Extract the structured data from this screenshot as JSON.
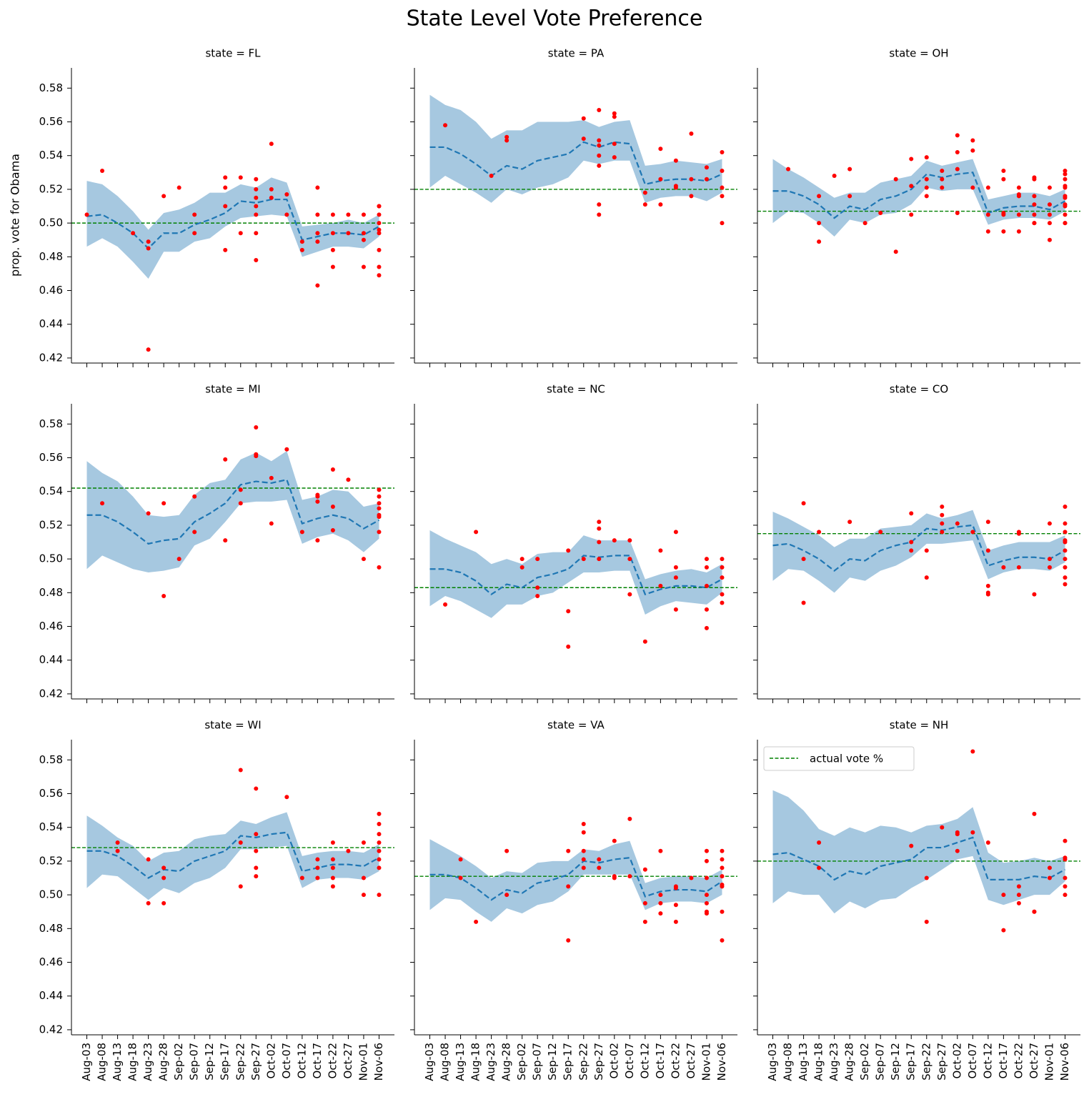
{
  "title": "State Level Vote Preference",
  "ylabel": "prop. vote for Obama",
  "categories": [
    "Aug-03",
    "Aug-08",
    "Aug-13",
    "Aug-18",
    "Aug-23",
    "Aug-28",
    "Sep-02",
    "Sep-07",
    "Sep-12",
    "Sep-17",
    "Sep-22",
    "Sep-27",
    "Oct-02",
    "Oct-07",
    "Oct-12",
    "Oct-17",
    "Oct-22",
    "Oct-27",
    "Nov-01",
    "Nov-06"
  ],
  "ylim": [
    0.417,
    0.592
  ],
  "yticks": [
    0.42,
    0.44,
    0.46,
    0.48,
    {
      "value": 0.5,
      "label": "0.50"
    },
    0.52,
    0.54,
    0.56,
    0.58
  ],
  "colors": {
    "band": "#a6c8e0",
    "line": "#1f77b4",
    "point": "#ff0000",
    "actual": "#008000"
  },
  "legend": {
    "label": "actual vote %",
    "loc": "upper left"
  },
  "chart_data": [
    {
      "type": "line",
      "title": "state = FL",
      "actual": 0.5,
      "mean": [
        0.504,
        0.505,
        0.5,
        0.494,
        0.485,
        0.494,
        0.494,
        0.499,
        0.502,
        0.506,
        0.513,
        0.512,
        0.514,
        0.514,
        0.49,
        0.492,
        0.494,
        0.494,
        0.493,
        0.498
      ],
      "upper": [
        0.525,
        0.523,
        0.516,
        0.507,
        0.496,
        0.506,
        0.508,
        0.512,
        0.518,
        0.518,
        0.523,
        0.521,
        0.527,
        0.524,
        0.498,
        0.499,
        0.5,
        0.502,
        0.5,
        0.505
      ],
      "lower": [
        0.486,
        0.491,
        0.486,
        0.477,
        0.467,
        0.483,
        0.483,
        0.489,
        0.491,
        0.498,
        0.503,
        0.504,
        0.505,
        0.504,
        0.48,
        0.483,
        0.486,
        0.486,
        0.485,
        0.492
      ],
      "polls": [
        [
          0.505
        ],
        [
          0.531
        ],
        [],
        [
          0.494
        ],
        [
          0.489,
          0.485,
          0.425
        ],
        [
          0.516
        ],
        [
          0.521
        ],
        [
          0.505,
          0.494
        ],
        [],
        [
          0.527,
          0.521,
          0.51,
          0.484
        ],
        [
          0.527,
          0.494
        ],
        [
          0.526,
          0.52,
          0.515,
          0.51,
          0.505,
          0.494,
          0.478
        ],
        [
          0.547,
          0.52,
          0.515
        ],
        [
          0.517,
          0.505
        ],
        [
          0.489,
          0.484
        ],
        [
          0.521,
          0.505,
          0.494,
          0.489,
          0.463
        ],
        [
          0.505,
          0.494,
          0.484,
          0.474
        ],
        [
          0.505,
          0.494
        ],
        [
          0.505,
          0.494,
          0.49,
          0.474
        ],
        [
          0.51,
          0.51,
          0.505,
          0.5,
          0.496,
          0.494,
          0.484,
          0.474,
          0.469
        ]
      ]
    },
    {
      "type": "line",
      "title": "state = PA",
      "actual": 0.52,
      "mean": [
        0.545,
        0.545,
        0.541,
        0.535,
        0.528,
        0.534,
        0.532,
        0.537,
        0.539,
        0.541,
        0.548,
        0.545,
        0.548,
        0.547,
        0.523,
        0.525,
        0.526,
        0.526,
        0.525,
        0.529
      ],
      "upper": [
        0.576,
        0.57,
        0.567,
        0.56,
        0.55,
        0.555,
        0.555,
        0.56,
        0.56,
        0.56,
        0.561,
        0.557,
        0.56,
        0.561,
        0.534,
        0.535,
        0.537,
        0.536,
        0.535,
        0.538
      ],
      "lower": [
        0.521,
        0.528,
        0.523,
        0.518,
        0.512,
        0.52,
        0.517,
        0.521,
        0.523,
        0.527,
        0.537,
        0.535,
        0.537,
        0.537,
        0.512,
        0.515,
        0.516,
        0.516,
        0.513,
        0.518
      ],
      "polls": [
        [],
        [
          0.558
        ],
        [],
        [],
        [
          0.528
        ],
        [
          0.551,
          0.549
        ],
        [],
        [],
        [],
        [],
        [
          0.562,
          0.55
        ],
        [
          0.567,
          0.549,
          0.546,
          0.54,
          0.534,
          0.511,
          0.505
        ],
        [
          0.565,
          0.563,
          0.547,
          0.539
        ],
        [],
        [
          0.518,
          0.511
        ],
        [
          0.544,
          0.526,
          0.511
        ],
        [
          0.537,
          0.522,
          0.521
        ],
        [
          0.553,
          0.526,
          0.516
        ],
        [
          0.533,
          0.526
        ],
        [
          0.542,
          0.531,
          0.521,
          0.516,
          0.5
        ]
      ]
    },
    {
      "type": "line",
      "title": "state = OH",
      "actual": 0.507,
      "mean": [
        0.519,
        0.519,
        0.516,
        0.511,
        0.503,
        0.51,
        0.508,
        0.514,
        0.516,
        0.52,
        0.529,
        0.527,
        0.529,
        0.53,
        0.506,
        0.509,
        0.51,
        0.51,
        0.508,
        0.513
      ],
      "upper": [
        0.538,
        0.532,
        0.527,
        0.521,
        0.515,
        0.518,
        0.518,
        0.524,
        0.526,
        0.528,
        0.537,
        0.534,
        0.536,
        0.538,
        0.514,
        0.516,
        0.518,
        0.518,
        0.516,
        0.52
      ],
      "lower": [
        0.5,
        0.507,
        0.506,
        0.5,
        0.492,
        0.502,
        0.5,
        0.505,
        0.506,
        0.511,
        0.521,
        0.519,
        0.52,
        0.52,
        0.499,
        0.502,
        0.503,
        0.503,
        0.502,
        0.507
      ],
      "polls": [
        [],
        [
          0.532
        ],
        [],
        [
          0.516,
          0.5,
          0.489
        ],
        [
          0.528
        ],
        [
          0.532,
          0.516
        ],
        [
          0.5
        ],
        [
          0.506
        ],
        [
          0.526,
          0.483
        ],
        [
          0.538,
          0.522,
          0.505
        ],
        [
          0.539,
          0.526,
          0.521,
          0.516
        ],
        [
          0.531,
          0.526,
          0.521
        ],
        [
          0.552,
          0.542,
          0.532,
          0.506
        ],
        [
          0.549,
          0.543,
          0.521
        ],
        [
          0.521,
          0.505,
          0.495
        ],
        [
          0.531,
          0.526,
          0.506,
          0.505,
          0.495
        ],
        [
          0.521,
          0.516,
          0.517,
          0.505,
          0.495
        ],
        [
          0.527,
          0.526,
          0.516,
          0.511,
          0.505,
          0.5,
          0.5
        ],
        [
          0.521,
          0.511,
          0.505,
          0.5,
          0.49
        ],
        [
          0.531,
          0.529,
          0.526,
          0.522,
          0.521,
          0.516,
          0.515,
          0.511,
          0.51,
          0.505,
          0.5,
          0.5
        ]
      ]
    },
    {
      "type": "line",
      "title": "state = MI",
      "actual": 0.542,
      "mean": [
        0.526,
        0.526,
        0.522,
        0.516,
        0.509,
        0.511,
        0.512,
        0.522,
        0.527,
        0.533,
        0.544,
        0.546,
        0.545,
        0.547,
        0.521,
        0.524,
        0.526,
        0.524,
        0.518,
        0.523
      ],
      "upper": [
        0.558,
        0.551,
        0.546,
        0.537,
        0.526,
        0.525,
        0.526,
        0.538,
        0.545,
        0.547,
        0.559,
        0.563,
        0.558,
        0.564,
        0.535,
        0.537,
        0.541,
        0.54,
        0.531,
        0.533
      ],
      "lower": [
        0.494,
        0.502,
        0.498,
        0.494,
        0.492,
        0.493,
        0.495,
        0.508,
        0.512,
        0.522,
        0.533,
        0.534,
        0.534,
        0.535,
        0.509,
        0.513,
        0.515,
        0.511,
        0.504,
        0.512
      ],
      "polls": [
        [],
        [
          0.533
        ],
        [],
        [],
        [
          0.527
        ],
        [
          0.533,
          0.478
        ],
        [
          0.5
        ],
        [
          0.537,
          0.516
        ],
        [],
        [
          0.559,
          0.511
        ],
        [
          0.541,
          0.533
        ],
        [
          0.578,
          0.562,
          0.561
        ],
        [
          0.548,
          0.521
        ],
        [
          0.565
        ],
        [
          0.516
        ],
        [
          0.538,
          0.537,
          0.534,
          0.511
        ],
        [
          0.553,
          0.531,
          0.517
        ],
        [
          0.547
        ],
        [
          0.5
        ],
        [
          0.541,
          0.537,
          0.533,
          0.53,
          0.526,
          0.525,
          0.516,
          0.495
        ]
      ]
    },
    {
      "type": "line",
      "title": "state = NC",
      "actual": 0.483,
      "mean": [
        0.494,
        0.494,
        0.492,
        0.487,
        0.479,
        0.485,
        0.483,
        0.489,
        0.491,
        0.494,
        0.502,
        0.501,
        0.502,
        0.502,
        0.479,
        0.482,
        0.484,
        0.484,
        0.483,
        0.488
      ],
      "upper": [
        0.517,
        0.512,
        0.508,
        0.504,
        0.497,
        0.5,
        0.497,
        0.503,
        0.504,
        0.504,
        0.514,
        0.511,
        0.511,
        0.511,
        0.488,
        0.491,
        0.493,
        0.494,
        0.492,
        0.497
      ],
      "lower": [
        0.472,
        0.478,
        0.475,
        0.47,
        0.465,
        0.473,
        0.473,
        0.478,
        0.48,
        0.486,
        0.492,
        0.492,
        0.493,
        0.493,
        0.467,
        0.472,
        0.475,
        0.474,
        0.473,
        0.48
      ],
      "polls": [
        [],
        [
          0.473
        ],
        [],
        [
          0.516
        ],
        [],
        [],
        [
          0.5,
          0.495
        ],
        [
          0.5,
          0.483,
          0.478
        ],
        [],
        [
          0.505,
          0.469,
          0.448
        ],
        [
          0.5
        ],
        [
          0.522,
          0.518,
          0.51,
          0.5
        ],
        [
          0.511
        ],
        [
          0.511,
          0.5,
          0.479
        ],
        [
          0.451
        ],
        [
          0.505,
          0.484
        ],
        [
          0.516,
          0.495,
          0.489,
          0.47
        ],
        [],
        [
          0.5,
          0.495,
          0.484,
          0.47,
          0.459
        ],
        [
          0.5,
          0.495,
          0.489,
          0.479,
          0.474
        ]
      ]
    },
    {
      "type": "line",
      "title": "state = CO",
      "actual": 0.515,
      "mean": [
        0.508,
        0.509,
        0.505,
        0.5,
        0.493,
        0.5,
        0.499,
        0.505,
        0.508,
        0.51,
        0.518,
        0.517,
        0.519,
        0.52,
        0.496,
        0.499,
        0.501,
        0.501,
        0.5,
        0.505
      ],
      "upper": [
        0.528,
        0.524,
        0.519,
        0.514,
        0.507,
        0.512,
        0.512,
        0.518,
        0.519,
        0.52,
        0.527,
        0.524,
        0.526,
        0.529,
        0.505,
        0.508,
        0.51,
        0.51,
        0.51,
        0.514
      ],
      "lower": [
        0.487,
        0.494,
        0.493,
        0.487,
        0.48,
        0.489,
        0.487,
        0.493,
        0.496,
        0.501,
        0.509,
        0.509,
        0.51,
        0.511,
        0.488,
        0.492,
        0.494,
        0.494,
        0.493,
        0.498
      ],
      "polls": [
        [],
        [],
        [
          0.533,
          0.5,
          0.474
        ],
        [
          0.516
        ],
        [],
        [
          0.522
        ],
        [],
        [
          0.516
        ],
        [],
        [
          0.527,
          0.51,
          0.505
        ],
        [
          0.505,
          0.489
        ],
        [
          0.531,
          0.526,
          0.521,
          0.516
        ],
        [
          0.521
        ],
        [
          0.516
        ],
        [
          0.522,
          0.505,
          0.484,
          0.48,
          0.479
        ],
        [
          0.495
        ],
        [
          0.516,
          0.515,
          0.495
        ],
        [
          0.479
        ],
        [
          0.521,
          0.5,
          0.495
        ],
        [
          0.531,
          0.521,
          0.516,
          0.511,
          0.51,
          0.505,
          0.5,
          0.495,
          0.489,
          0.485
        ]
      ]
    },
    {
      "type": "line",
      "title": "state = WI",
      "actual": 0.528,
      "mean": [
        0.526,
        0.526,
        0.523,
        0.517,
        0.51,
        0.515,
        0.514,
        0.52,
        0.523,
        0.526,
        0.535,
        0.534,
        0.536,
        0.537,
        0.514,
        0.516,
        0.518,
        0.518,
        0.517,
        0.522
      ],
      "upper": [
        0.547,
        0.541,
        0.534,
        0.529,
        0.52,
        0.525,
        0.526,
        0.533,
        0.535,
        0.536,
        0.544,
        0.542,
        0.546,
        0.549,
        0.523,
        0.525,
        0.526,
        0.526,
        0.525,
        0.53
      ],
      "lower": [
        0.504,
        0.512,
        0.511,
        0.504,
        0.497,
        0.504,
        0.501,
        0.507,
        0.51,
        0.516,
        0.527,
        0.527,
        0.528,
        0.529,
        0.504,
        0.509,
        0.51,
        0.51,
        0.509,
        0.514
      ],
      "polls": [
        [],
        [],
        [
          0.531,
          0.526
        ],
        [],
        [
          0.521,
          0.495
        ],
        [
          0.516,
          0.51,
          0.495
        ],
        [],
        [],
        [],
        [],
        [
          0.574,
          0.531,
          0.505
        ],
        [
          0.563,
          0.536,
          0.526,
          0.516,
          0.511
        ],
        [],
        [
          0.558
        ],
        [
          0.51
        ],
        [
          0.521,
          0.516,
          0.51
        ],
        [
          0.531,
          0.521,
          0.516,
          0.51,
          0.505
        ],
        [
          0.526
        ],
        [
          0.531,
          0.51,
          0.5
        ],
        [
          0.548,
          0.542,
          0.536,
          0.531,
          0.526,
          0.521,
          0.516,
          0.5
        ]
      ]
    },
    {
      "type": "line",
      "title": "state = VA",
      "actual": 0.511,
      "mean": [
        0.512,
        0.512,
        0.51,
        0.504,
        0.497,
        0.503,
        0.501,
        0.507,
        0.509,
        0.512,
        0.52,
        0.519,
        0.521,
        0.522,
        0.499,
        0.502,
        0.503,
        0.503,
        0.502,
        0.508
      ],
      "upper": [
        0.533,
        0.528,
        0.523,
        0.517,
        0.51,
        0.514,
        0.513,
        0.519,
        0.52,
        0.52,
        0.527,
        0.526,
        0.53,
        0.532,
        0.507,
        0.51,
        0.511,
        0.511,
        0.51,
        0.515
      ],
      "lower": [
        0.491,
        0.498,
        0.497,
        0.49,
        0.484,
        0.492,
        0.489,
        0.494,
        0.496,
        0.502,
        0.512,
        0.512,
        0.512,
        0.512,
        0.491,
        0.495,
        0.496,
        0.496,
        0.495,
        0.5
      ],
      "polls": [
        [],
        [],
        [
          0.521,
          0.51
        ],
        [
          0.484
        ],
        [],
        [
          0.526,
          0.5
        ],
        [],
        [],
        [],
        [
          0.526,
          0.505,
          0.473
        ],
        [
          0.542,
          0.537,
          0.526,
          0.521,
          0.516
        ],
        [
          0.521,
          0.516
        ],
        [
          0.532,
          0.511,
          0.51
        ],
        [
          0.545,
          0.511
        ],
        [
          0.515,
          0.495,
          0.484
        ],
        [
          0.526,
          0.5,
          0.495,
          0.489
        ],
        [
          0.505,
          0.504,
          0.494,
          0.484
        ],
        [
          0.51
        ],
        [
          0.526,
          0.52,
          0.51,
          0.5,
          0.495,
          0.49,
          0.489
        ],
        [
          0.526,
          0.521,
          0.516,
          0.511,
          0.506,
          0.505,
          0.49,
          0.473
        ]
      ]
    },
    {
      "type": "line",
      "title": "state = NH",
      "actual": 0.52,
      "mean": [
        0.524,
        0.525,
        0.521,
        0.517,
        0.509,
        0.514,
        0.512,
        0.517,
        0.519,
        0.521,
        0.528,
        0.528,
        0.531,
        0.534,
        0.509,
        0.509,
        0.509,
        0.511,
        0.51,
        0.515
      ],
      "upper": [
        0.562,
        0.558,
        0.55,
        0.539,
        0.535,
        0.54,
        0.537,
        0.541,
        0.54,
        0.537,
        0.541,
        0.542,
        0.545,
        0.552,
        0.525,
        0.519,
        0.52,
        0.522,
        0.52,
        0.523
      ],
      "lower": [
        0.495,
        0.502,
        0.5,
        0.5,
        0.489,
        0.496,
        0.492,
        0.497,
        0.498,
        0.504,
        0.509,
        0.515,
        0.521,
        0.523,
        0.497,
        0.494,
        0.497,
        0.5,
        0.5,
        0.508
      ],
      "polls": [
        [],
        [],
        [],
        [
          0.531,
          0.516
        ],
        [],
        [],
        [],
        [],
        [],
        [
          0.529
        ],
        [
          0.51,
          0.484
        ],
        [
          0.54
        ],
        [
          0.537,
          0.536,
          0.526
        ],
        [
          0.585,
          0.537
        ],
        [
          0.531
        ],
        [
          0.5,
          0.479
        ],
        [
          0.505,
          0.5,
          0.495
        ],
        [
          0.548,
          0.49,
          0.49
        ],
        [
          0.516,
          0.51
        ],
        [
          0.532,
          0.522,
          0.521,
          0.51,
          0.505,
          0.5
        ]
      ]
    }
  ]
}
